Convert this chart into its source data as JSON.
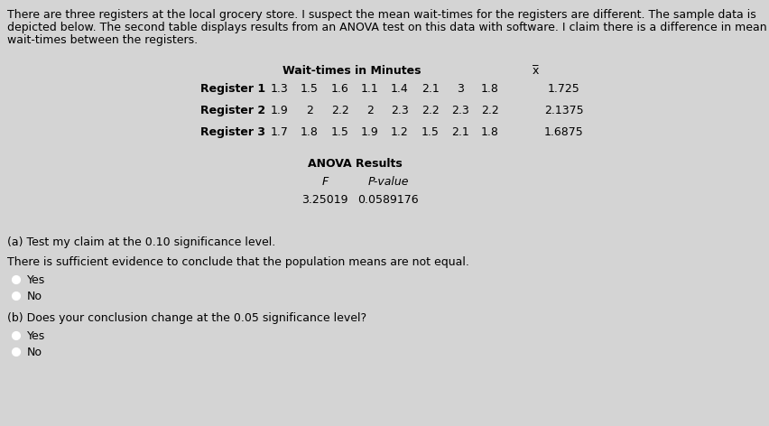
{
  "background_color": "#d4d4d4",
  "intro_text_lines": [
    "There are three registers at the local grocery store. I suspect the mean wait-times for the registers are different. The sample data is",
    "depicted below. The second table displays results from an ANOVA test on this data with software. I claim there is a difference in mean",
    "wait-times between the registers."
  ],
  "table_title": "Wait-times in Minutes",
  "xbar_label": "x̅",
  "registers": [
    "Register 1",
    "Register 2",
    "Register 3"
  ],
  "data": [
    [
      1.3,
      1.5,
      1.6,
      1.1,
      1.4,
      2.1,
      3,
      1.8,
      1.725
    ],
    [
      1.9,
      2,
      2.2,
      2,
      2.3,
      2.2,
      2.3,
      2.2,
      2.1375
    ],
    [
      1.7,
      1.8,
      1.5,
      1.9,
      1.2,
      1.5,
      2.1,
      1.8,
      1.6875
    ]
  ],
  "anova_title": "ANOVA Results",
  "anova_headers": [
    "F",
    "P-value"
  ],
  "anova_values": [
    "3.25019",
    "0.0589176"
  ],
  "question_a": "(a) Test my claim at the 0.10 significance level.",
  "answer_a_text": "There is sufficient evidence to conclude that the population means are not equal.",
  "answer_a_options": [
    "Yes",
    "No"
  ],
  "question_b": "(b) Does your conclusion change at the 0.05 significance level?",
  "answer_b_options": [
    "Yes",
    "No"
  ],
  "font_size": 9.0
}
